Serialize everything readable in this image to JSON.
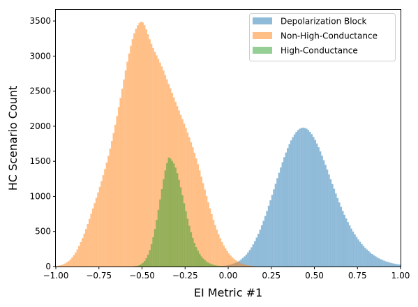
{
  "chart_data": {
    "type": "histogram",
    "xlabel": "EI Metric #1",
    "ylabel": "HC Scenario Count",
    "xlim": [
      -1.0,
      1.0
    ],
    "ylim": [
      0,
      3660
    ],
    "x_ticks": [
      "−1.00",
      "−0.75",
      "−0.50",
      "−0.25",
      "0.00",
      "0.25",
      "0.50",
      "0.75",
      "1.00"
    ],
    "y_ticks": [
      "0",
      "500",
      "1000",
      "1500",
      "2000",
      "2500",
      "3000",
      "3500"
    ],
    "grid": false,
    "legend_position": "top-right",
    "bin_width": 0.01,
    "series": [
      {
        "name": "Depolarization Block",
        "color": "#1f77b4",
        "opacity": 0.5,
        "bins": {
          "start": -0.05,
          "counts": [
            5,
            7,
            10,
            13,
            17,
            22,
            28,
            36,
            45,
            55,
            68,
            83,
            100,
            121,
            145,
            171,
            202,
            236,
            274,
            316,
            362,
            413,
            467,
            525,
            587,
            652,
            721,
            793,
            867,
            944,
            1022,
            1101,
            1180,
            1259,
            1337,
            1413,
            1487,
            1558,
            1625,
            1688,
            1746,
            1798,
            1845,
            1885,
            1919,
            1945,
            1964,
            1976,
            1980,
            1976,
            1965,
            1946,
            1920,
            1887,
            1848,
            1804,
            1754,
            1700,
            1642,
            1580,
            1516,
            1450,
            1382,
            1313,
            1244,
            1176,
            1108,
            1041,
            976,
            913,
            852,
            794,
            738,
            685,
            634,
            587,
            541,
            499,
            459,
            421,
            386,
            353,
            322,
            294,
            267,
            243,
            220,
            199,
            180,
            162,
            146,
            131,
            117,
            105,
            94,
            84,
            74,
            66,
            59,
            52,
            46,
            41,
            36,
            32,
            28
          ]
        }
      },
      {
        "name": "Non-High-Conductance",
        "color": "#ff7f0e",
        "opacity": 0.5,
        "bins": {
          "start": -1.0,
          "counts": [
            8,
            12,
            17,
            24,
            33,
            45,
            60,
            79,
            102,
            130,
            163,
            201,
            245,
            294,
            348,
            406,
            469,
            536,
            606,
            678,
            752,
            827,
            903,
            980,
            1057,
            1136,
            1218,
            1302,
            1390,
            1482,
            1579,
            1681,
            1789,
            1902,
            2021,
            2145,
            2273,
            2403,
            2535,
            2666,
            2795,
            2919,
            3037,
            3145,
            3241,
            3323,
            3389,
            3439,
            3473,
            3490,
            3480,
            3440,
            3380,
            3310,
            3240,
            3175,
            3115,
            3060,
            3010,
            2960,
            2908,
            2852,
            2793,
            2731,
            2668,
            2604,
            2540,
            2476,
            2412,
            2349,
            2286,
            2224,
            2162,
            2100,
            2038,
            1975,
            1910,
            1843,
            1773,
            1700,
            1623,
            1542,
            1458,
            1370,
            1280,
            1189,
            1097,
            1006,
            916,
            829,
            746,
            667,
            593,
            524,
            460,
            402,
            349,
            301,
            258,
            220,
            186,
            156,
            130,
            108,
            89,
            72,
            58,
            47,
            37,
            29,
            22,
            17,
            13,
            10,
            7,
            5
          ]
        }
      },
      {
        "name": "High-Conductance",
        "color": "#2ca02c",
        "opacity": 0.5,
        "bins": {
          "start": -0.55,
          "counts": [
            4,
            7,
            12,
            20,
            33,
            52,
            80,
            118,
            169,
            235,
            318,
            418,
            535,
            666,
            808,
            956,
            1104,
            1244,
            1370,
            1476,
            1555,
            1540,
            1505,
            1470,
            1410,
            1330,
            1236,
            1130,
            1017,
            902,
            789,
            681,
            581,
            490,
            409,
            338,
            277,
            225,
            181,
            145,
            115,
            91,
            71,
            55,
            43,
            33,
            25,
            19,
            14,
            11,
            8,
            6,
            4
          ]
        }
      }
    ]
  }
}
